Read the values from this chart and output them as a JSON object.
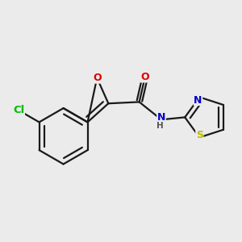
{
  "bg_color": "#ebebeb",
  "bond_color": "#1a1a1a",
  "bond_width": 1.6,
  "atom_colors": {
    "C": "#1a1a1a",
    "Cl": "#00bb00",
    "O": "#dd0000",
    "N": "#0000cc",
    "S": "#bbbb00",
    "H": "#555555"
  },
  "font_size": 9.5
}
